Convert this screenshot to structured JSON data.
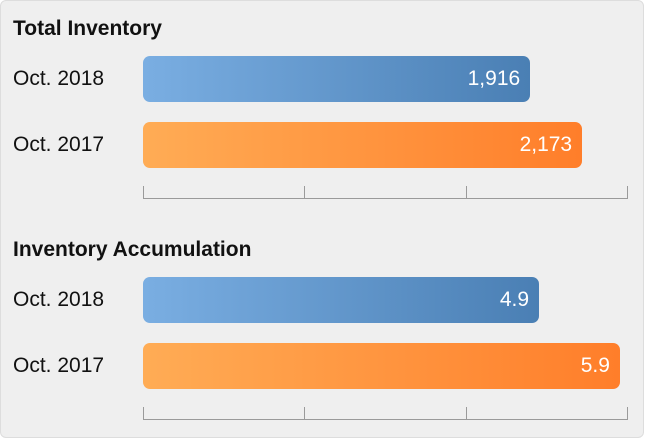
{
  "chart_data": [
    {
      "type": "bar",
      "orientation": "horizontal",
      "title": "Total Inventory",
      "categories": [
        "Oct. 2018",
        "Oct. 2017"
      ],
      "values": [
        1916,
        2173
      ],
      "value_labels": [
        "1,916",
        "2,173"
      ],
      "xlim": [
        0,
        2400
      ],
      "axis_tick_count": 4,
      "bar_colors": [
        "#4a7fb4",
        "#ff8a33"
      ]
    },
    {
      "type": "bar",
      "orientation": "horizontal",
      "title": "Inventory Accumulation",
      "categories": [
        "Oct. 2018",
        "Oct. 2017"
      ],
      "values": [
        4.9,
        5.9
      ],
      "value_labels": [
        "4.9",
        "5.9"
      ],
      "xlim": [
        0,
        6
      ],
      "axis_tick_count": 4,
      "bar_colors": [
        "#4a7fb4",
        "#ff8a33"
      ]
    }
  ]
}
